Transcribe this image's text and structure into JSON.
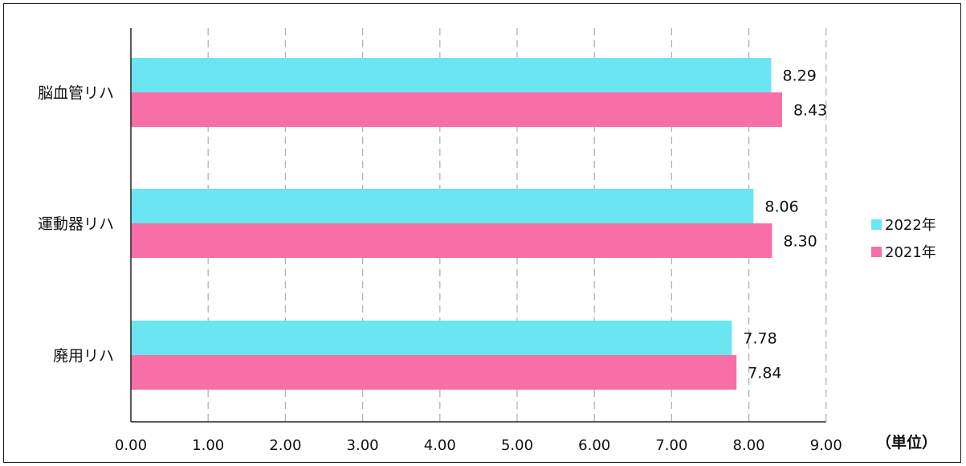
{
  "chart_data": {
    "type": "bar",
    "orientation": "horizontal",
    "categories": [
      "脳血管リハ",
      "運動器リハ",
      "廃用リハ"
    ],
    "series": [
      {
        "name": "2022年",
        "values": [
          8.29,
          8.06,
          7.78
        ],
        "labels": [
          "8.29",
          "8.06",
          "7.78"
        ],
        "color": "#6ce5f2"
      },
      {
        "name": "2021年",
        "values": [
          8.43,
          8.3,
          7.84
        ],
        "labels": [
          "8.43",
          "8.30",
          "7.84"
        ],
        "color": "#f86fa7"
      }
    ],
    "xlim": [
      0,
      9
    ],
    "xticks": [
      "0.00",
      "1.00",
      "2.00",
      "3.00",
      "4.00",
      "5.00",
      "6.00",
      "7.00",
      "8.00",
      "9.00"
    ],
    "unit_label": "（単位）",
    "grid": "vertical dashed",
    "legend_position": "right"
  }
}
